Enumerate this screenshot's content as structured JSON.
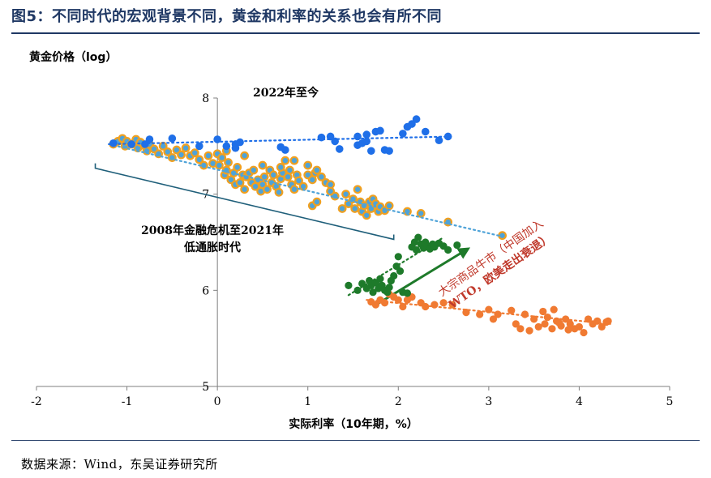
{
  "figure": {
    "title": "图5：不同时代的宏观背景不同，黄金和利率的关系也会有所不同",
    "source": "数据来源：Wind，东吴证券研究所"
  },
  "chart_data": {
    "type": "scatter",
    "ylabel": "黄金价格（log）",
    "xlabel": "实际利率（10年期，%）",
    "xlim": [
      -2,
      5
    ],
    "ylim": [
      5,
      8
    ],
    "xticks": [
      "-2",
      "-1",
      "0",
      "1",
      "2",
      "3",
      "4",
      "5"
    ],
    "yticks": [
      "5",
      "6",
      "7",
      "8"
    ],
    "grid": false,
    "colors": {
      "era_2022": "#1f6fe8",
      "era_2008_fill": "#4fa3d8",
      "era_2008_edge": "#f0a020",
      "era_commodity": "#1e7a2a",
      "era_pre2008": "#f07a32",
      "bracket": "#1f5f7a",
      "arrow": "#1e7a2a"
    },
    "annotations": {
      "era_2022": "2022年至今",
      "era_2008_line1": "2008年金融危机至2021年",
      "era_2008_line2": "低通胀时代",
      "commodity_line1": "大宗商品牛市（中国加入",
      "commodity_line2": "WTO，欧美走出衰退）"
    },
    "series": [
      {
        "key": "era_2022",
        "points": [
          [
            -1.15,
            7.53
          ],
          [
            -0.95,
            7.52
          ],
          [
            -0.8,
            7.52
          ],
          [
            -0.75,
            7.57
          ],
          [
            -0.5,
            7.58
          ],
          [
            -0.2,
            7.5
          ],
          [
            0,
            7.57
          ],
          [
            0.1,
            7.5
          ],
          [
            0.2,
            7.52
          ],
          [
            0.2,
            7.48
          ],
          [
            0.25,
            7.54
          ],
          [
            0.7,
            7.49
          ],
          [
            0.75,
            7.46
          ],
          [
            1.15,
            7.59
          ],
          [
            1.25,
            7.6
          ],
          [
            1.3,
            7.55
          ],
          [
            1.35,
            7.47
          ],
          [
            1.55,
            7.6
          ],
          [
            1.55,
            7.51
          ],
          [
            1.6,
            7.53
          ],
          [
            1.65,
            7.55
          ],
          [
            1.65,
            7.62
          ],
          [
            1.7,
            7.45
          ],
          [
            1.75,
            7.65
          ],
          [
            1.8,
            7.66
          ],
          [
            1.85,
            7.46
          ],
          [
            1.9,
            7.45
          ],
          [
            2.05,
            7.63
          ],
          [
            2.1,
            7.7
          ],
          [
            2.15,
            7.73
          ],
          [
            2.2,
            7.78
          ],
          [
            2.3,
            7.65
          ],
          [
            2.45,
            7.56
          ],
          [
            2.55,
            7.6
          ]
        ],
        "trend": [
          [
            -1.2,
            7.52
          ],
          [
            2.6,
            7.6
          ]
        ]
      },
      {
        "key": "era_2008",
        "points": [
          [
            -1.15,
            7.52
          ],
          [
            -1.1,
            7.55
          ],
          [
            -1.05,
            7.58
          ],
          [
            -1.02,
            7.5
          ],
          [
            -1.0,
            7.55
          ],
          [
            -0.95,
            7.52
          ],
          [
            -0.9,
            7.57
          ],
          [
            -0.88,
            7.48
          ],
          [
            -0.85,
            7.54
          ],
          [
            -0.8,
            7.5
          ],
          [
            -0.78,
            7.45
          ],
          [
            -0.75,
            7.52
          ],
          [
            -0.7,
            7.47
          ],
          [
            -0.65,
            7.42
          ],
          [
            -0.6,
            7.5
          ],
          [
            -0.55,
            7.44
          ],
          [
            -0.5,
            7.38
          ],
          [
            -0.45,
            7.46
          ],
          [
            -0.4,
            7.41
          ],
          [
            -0.35,
            7.48
          ],
          [
            -0.3,
            7.4
          ],
          [
            -0.25,
            7.43
          ],
          [
            -0.2,
            7.36
          ],
          [
            -0.15,
            7.3
          ],
          [
            -0.1,
            7.4
          ],
          [
            -0.05,
            7.32
          ],
          [
            0.0,
            7.42
          ],
          [
            0.02,
            7.3
          ],
          [
            0.05,
            7.38
          ],
          [
            0.08,
            7.2
          ],
          [
            0.1,
            7.25
          ],
          [
            0.12,
            7.33
          ],
          [
            0.15,
            7.15
          ],
          [
            0.18,
            7.22
          ],
          [
            0.2,
            7.1
          ],
          [
            0.22,
            7.28
          ],
          [
            0.25,
            7.12
          ],
          [
            0.28,
            7.2
          ],
          [
            0.3,
            7.05
          ],
          [
            0.32,
            7.18
          ],
          [
            0.35,
            7.22
          ],
          [
            0.38,
            7.12
          ],
          [
            0.4,
            7.25
          ],
          [
            0.42,
            7.08
          ],
          [
            0.45,
            7.15
          ],
          [
            0.48,
            7.03
          ],
          [
            0.5,
            7.1
          ],
          [
            0.52,
            7.18
          ],
          [
            0.55,
            7.05
          ],
          [
            0.58,
            7.25
          ],
          [
            0.6,
            7.12
          ],
          [
            0.62,
            7.2
          ],
          [
            0.65,
            7.08
          ],
          [
            0.68,
            7.02
          ],
          [
            0.7,
            7.16
          ],
          [
            0.72,
            7.22
          ],
          [
            0.75,
            7.35
          ],
          [
            0.78,
            7.18
          ],
          [
            0.8,
            7.25
          ],
          [
            0.82,
            7.1
          ],
          [
            0.85,
            7.05
          ],
          [
            0.88,
            7.2
          ],
          [
            0.9,
            7.14
          ],
          [
            0.95,
            7.08
          ],
          [
            1.0,
            7.2
          ],
          [
            1.05,
            7.15
          ],
          [
            1.08,
            7.22
          ],
          [
            1.1,
            7.25
          ],
          [
            1.15,
            7.18
          ],
          [
            1.2,
            7.12
          ],
          [
            1.25,
            7.1
          ],
          [
            0.1,
            7.45
          ],
          [
            0.3,
            7.4
          ],
          [
            0.5,
            7.3
          ],
          [
            0.7,
            7.28
          ],
          [
            0.85,
            7.35
          ],
          [
            1.0,
            7.3
          ],
          [
            1.05,
            6.88
          ],
          [
            1.1,
            6.92
          ],
          [
            1.25,
            7.03
          ],
          [
            1.3,
            6.98
          ],
          [
            1.38,
            6.85
          ],
          [
            1.42,
            7.0
          ],
          [
            1.45,
            6.9
          ],
          [
            1.5,
            6.95
          ],
          [
            1.52,
            6.85
          ],
          [
            1.55,
            7.05
          ],
          [
            1.58,
            6.92
          ],
          [
            1.6,
            6.82
          ],
          [
            1.62,
            6.88
          ],
          [
            1.65,
            6.78
          ],
          [
            1.68,
            6.92
          ],
          [
            1.7,
            6.85
          ],
          [
            1.72,
            6.95
          ],
          [
            1.75,
            6.9
          ],
          [
            1.78,
            6.82
          ],
          [
            1.8,
            6.87
          ],
          [
            1.85,
            6.83
          ],
          [
            1.9,
            6.88
          ],
          [
            2.1,
            6.82
          ],
          [
            2.25,
            6.8
          ],
          [
            2.55,
            6.71
          ],
          [
            3.15,
            6.57
          ]
        ],
        "trend": [
          [
            -1.2,
            7.52
          ],
          [
            3.15,
            6.56
          ]
        ]
      },
      {
        "key": "era_commodity",
        "points": [
          [
            1.45,
            6.05
          ],
          [
            1.55,
            6.0
          ],
          [
            1.6,
            6.07
          ],
          [
            1.65,
            6.02
          ],
          [
            1.68,
            6.1
          ],
          [
            1.7,
            6.05
          ],
          [
            1.72,
            5.98
          ],
          [
            1.75,
            6.08
          ],
          [
            1.78,
            6.02
          ],
          [
            1.8,
            6.12
          ],
          [
            1.82,
            6.05
          ],
          [
            1.85,
            6.0
          ],
          [
            1.88,
            5.98
          ],
          [
            1.9,
            6.03
          ],
          [
            1.92,
            6.1
          ],
          [
            1.95,
            6.15
          ],
          [
            1.98,
            6.25
          ],
          [
            2.0,
            6.35
          ],
          [
            2.02,
            6.2
          ],
          [
            2.05,
            5.98
          ],
          [
            2.1,
            5.97
          ],
          [
            2.15,
            6.45
          ],
          [
            2.18,
            6.5
          ],
          [
            2.2,
            6.42
          ],
          [
            2.22,
            6.55
          ],
          [
            2.25,
            6.48
          ],
          [
            2.28,
            6.44
          ],
          [
            2.3,
            6.5
          ],
          [
            2.32,
            6.46
          ],
          [
            2.35,
            6.43
          ],
          [
            2.38,
            6.48
          ],
          [
            2.4,
            6.45
          ],
          [
            2.45,
            6.49
          ],
          [
            2.5,
            6.46
          ],
          [
            2.55,
            6.42
          ],
          [
            2.65,
            6.47
          ]
        ],
        "trend": [
          [
            1.45,
            5.95
          ],
          [
            2.5,
            6.55
          ]
        ]
      },
      {
        "key": "era_pre2008",
        "points": [
          [
            1.7,
            5.88
          ],
          [
            1.75,
            5.85
          ],
          [
            1.8,
            5.9
          ],
          [
            1.85,
            5.87
          ],
          [
            1.9,
            5.96
          ],
          [
            1.95,
            5.93
          ],
          [
            2.0,
            5.9
          ],
          [
            2.05,
            5.83
          ],
          [
            2.1,
            5.9
          ],
          [
            2.15,
            5.93
          ],
          [
            2.25,
            5.87
          ],
          [
            2.3,
            5.83
          ],
          [
            2.4,
            5.85
          ],
          [
            2.5,
            5.87
          ],
          [
            2.6,
            5.85
          ],
          [
            2.75,
            5.77
          ],
          [
            2.9,
            5.75
          ],
          [
            3.0,
            5.8
          ],
          [
            3.05,
            5.7
          ],
          [
            3.1,
            5.75
          ],
          [
            3.25,
            5.79
          ],
          [
            3.3,
            5.65
          ],
          [
            3.35,
            5.6
          ],
          [
            3.4,
            5.75
          ],
          [
            3.45,
            5.58
          ],
          [
            3.5,
            5.7
          ],
          [
            3.55,
            5.62
          ],
          [
            3.6,
            5.78
          ],
          [
            3.62,
            5.65
          ],
          [
            3.65,
            5.72
          ],
          [
            3.7,
            5.6
          ],
          [
            3.72,
            5.8
          ],
          [
            3.75,
            5.68
          ],
          [
            3.78,
            5.66
          ],
          [
            3.8,
            5.63
          ],
          [
            3.85,
            5.7
          ],
          [
            3.88,
            5.59
          ],
          [
            3.9,
            5.65
          ],
          [
            3.95,
            5.6
          ],
          [
            4.0,
            5.62
          ],
          [
            4.05,
            5.56
          ],
          [
            4.1,
            5.7
          ],
          [
            4.15,
            5.65
          ],
          [
            4.2,
            5.68
          ],
          [
            4.25,
            5.62
          ],
          [
            4.3,
            5.67
          ],
          [
            4.32,
            5.68
          ]
        ],
        "trend": [
          [
            1.65,
            5.9
          ],
          [
            4.35,
            5.65
          ]
        ]
      }
    ]
  }
}
